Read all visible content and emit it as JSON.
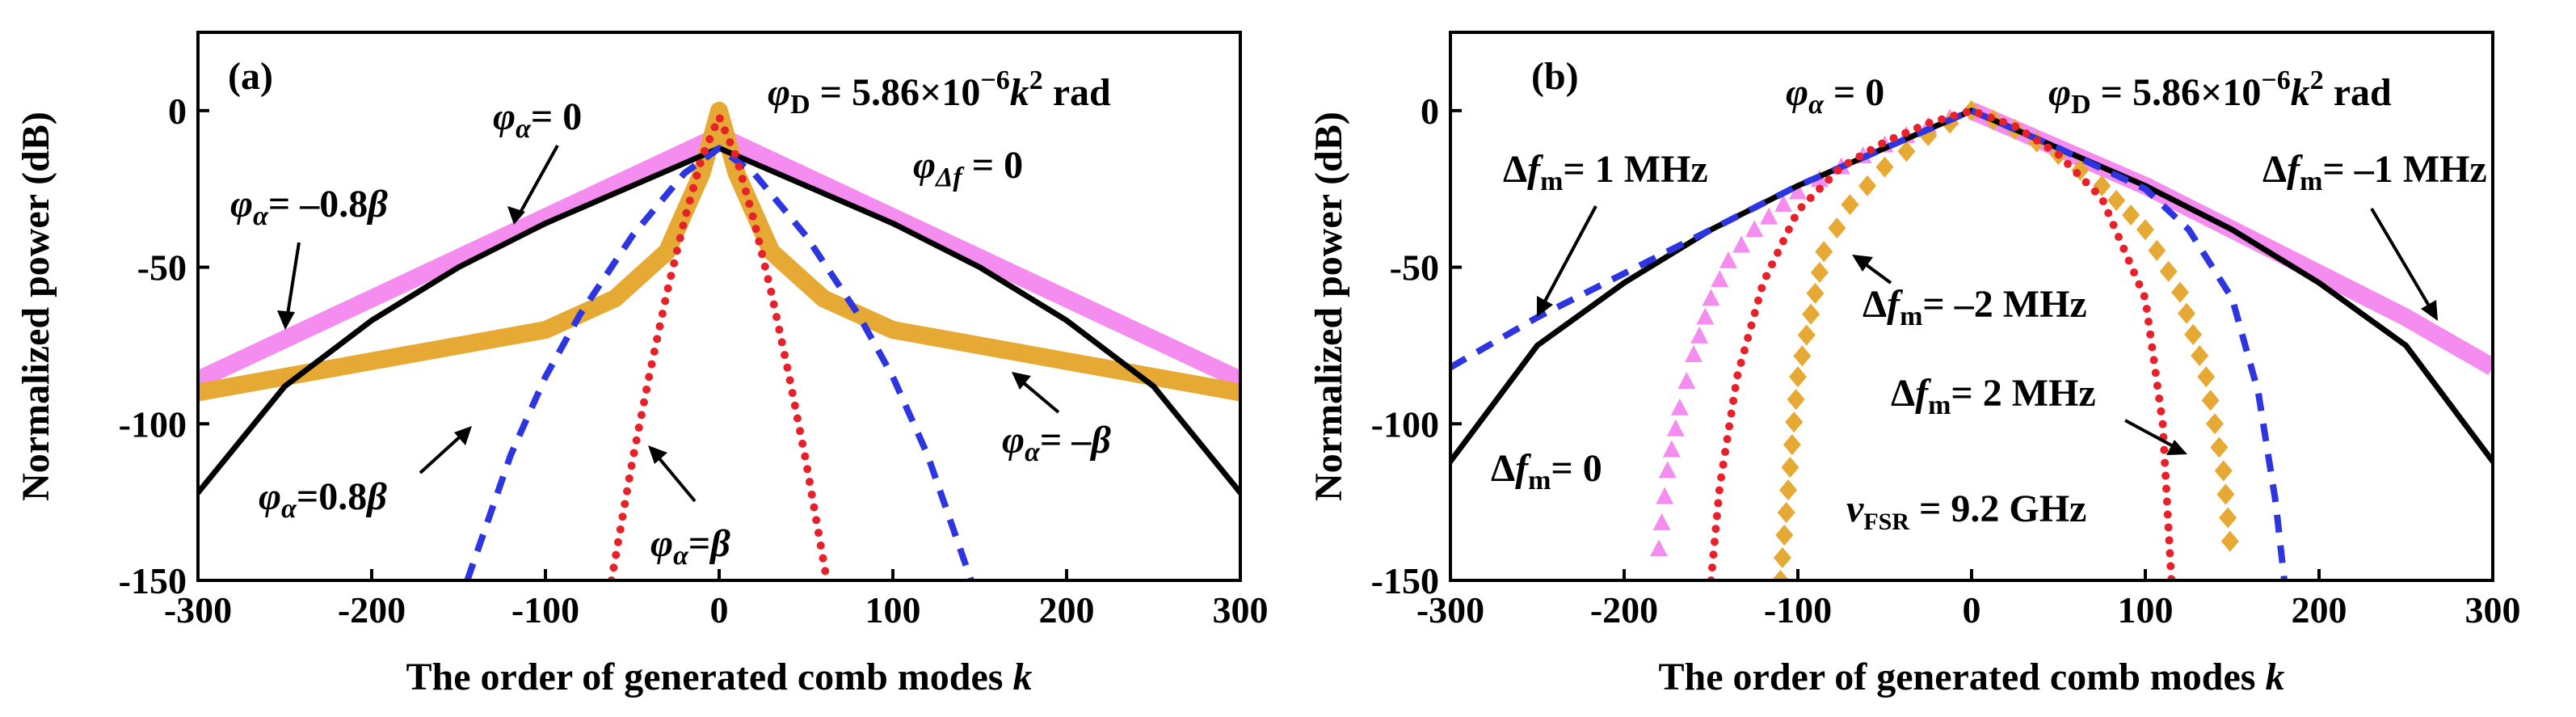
{
  "chart_data": [
    {
      "panel": "(a)",
      "type": "line",
      "xlabel": "The order of generated comb modes",
      "xlabel_var": "k",
      "ylabel": "Normalized power (dB)",
      "xlim": [
        -300,
        300
      ],
      "ylim": [
        -150,
        25
      ],
      "xticks": [
        -300,
        -200,
        -100,
        0,
        100,
        200,
        300
      ],
      "yticks": [
        0,
        -50,
        -100,
        -150
      ],
      "series": [
        {
          "name": "φα = 0",
          "style": "solid",
          "color": "#000000",
          "x": [
            -300,
            -250,
            -200,
            -150,
            -100,
            -50,
            0,
            50,
            100,
            150,
            200,
            250,
            300
          ],
          "y": [
            -122,
            -88,
            -67,
            -50,
            -36,
            -24,
            -12,
            -24,
            -36,
            -50,
            -67,
            -88,
            -122
          ]
        },
        {
          "name": "φα = −0.8β",
          "style": "thick",
          "color": "#f58cf0",
          "x": [
            -300,
            -200,
            -100,
            0,
            100,
            200,
            300
          ],
          "y": [
            -86,
            -60,
            -34,
            -8,
            -34,
            -60,
            -86
          ]
        },
        {
          "name": "φα = −β",
          "style": "thick",
          "color": "#e6a933",
          "x": [
            -300,
            -200,
            -100,
            -60,
            -30,
            -10,
            0,
            10,
            30,
            60,
            100,
            200,
            300
          ],
          "y": [
            -90,
            -80,
            -70,
            -60,
            -45,
            -20,
            0,
            -20,
            -45,
            -60,
            -70,
            -80,
            -90
          ]
        },
        {
          "name": "φα = 0.8β",
          "style": "dashed",
          "color": "#2c35e0",
          "x": [
            -145,
            -120,
            -100,
            -80,
            -50,
            -20,
            0,
            20,
            50,
            80,
            100,
            120,
            145
          ],
          "y": [
            -150,
            -110,
            -85,
            -65,
            -40,
            -20,
            -12,
            -20,
            -40,
            -65,
            -85,
            -110,
            -150
          ]
        },
        {
          "name": "φα = β",
          "style": "dotted",
          "color": "#e8202a",
          "x": [
            -62,
            -50,
            -40,
            -30,
            -20,
            -10,
            0,
            10,
            20,
            30,
            40,
            50,
            62
          ],
          "y": [
            -150,
            -112,
            -84,
            -58,
            -35,
            -15,
            -2,
            -15,
            -35,
            -58,
            -84,
            -112,
            -150
          ]
        }
      ],
      "annotations": [
        {
          "id": "a_phi0",
          "text": "φα = 0"
        },
        {
          "id": "a_m08b",
          "text": "φα = −0.8β"
        },
        {
          "id": "a_mb",
          "text": "φα = −β"
        },
        {
          "id": "a_08b",
          "text": "φα =0.8β"
        },
        {
          "id": "a_b",
          "text": "φα =β"
        },
        {
          "id": "a_phiD",
          "text": "φD = 5.86×10−6k2 rad"
        },
        {
          "id": "a_phidf",
          "text": "φΔf = 0"
        }
      ]
    },
    {
      "panel": "(b)",
      "type": "line",
      "xlabel": "The order of generated comb modes",
      "xlabel_var": "k",
      "ylabel": "Normalized power (dB)",
      "xlim": [
        -300,
        300
      ],
      "ylim": [
        -150,
        25
      ],
      "xticks": [
        -300,
        -200,
        -100,
        0,
        100,
        200,
        300
      ],
      "yticks": [
        0,
        -50,
        -100,
        -150
      ],
      "series": [
        {
          "name": "Δfm = 0",
          "style": "solid",
          "color": "#000000",
          "x": [
            -300,
            -250,
            -200,
            -150,
            -100,
            -50,
            0,
            50,
            100,
            150,
            200,
            250,
            300
          ],
          "y": [
            -112,
            -75,
            -55,
            -38,
            -24,
            -12,
            0,
            -12,
            -24,
            -38,
            -55,
            -75,
            -112
          ]
        },
        {
          "name": "Δfm = −1 MHz",
          "style": "thick",
          "color": "#f58cf0",
          "x": [
            0,
            50,
            100,
            150,
            200,
            250,
            300
          ],
          "y": [
            0,
            -12,
            -24,
            -38,
            -52,
            -66,
            -82
          ]
        },
        {
          "name": "Δfm = 1 MHz",
          "style": "dashed",
          "color": "#2c35e0",
          "x": [
            -300,
            -250,
            -200,
            -150,
            -100,
            -50,
            0
          ],
          "y": [
            -82,
            -66,
            -52,
            -38,
            -24,
            -12,
            0
          ]
        },
        {
          "name": "Δfm = 1 MHz (right branch)",
          "style": "dashed",
          "color": "#2c35e0",
          "x": [
            0,
            50,
            100,
            125,
            150,
            165,
            175,
            180
          ],
          "y": [
            0,
            -12,
            -25,
            -38,
            -60,
            -90,
            -125,
            -150
          ]
        },
        {
          "name": "Δfm = −2 MHz",
          "style": "triangles",
          "color": "#f58cf0",
          "x": [
            -180,
            -175,
            -168,
            -160,
            -150,
            -140,
            -125,
            -100,
            -75,
            -50,
            -25,
            0
          ],
          "y": [
            -140,
            -115,
            -95,
            -78,
            -60,
            -48,
            -38,
            -26,
            -18,
            -11,
            -5,
            0
          ]
        },
        {
          "name": "Δfm = 2 MHz",
          "style": "diamonds",
          "color": "#e6a933",
          "x": [
            -110,
            -100,
            -85,
            -70,
            -50,
            -25,
            0,
            25,
            50,
            75,
            100,
            120,
            135,
            145,
            150
          ],
          "y": [
            -150,
            -85,
            -45,
            -30,
            -18,
            -8,
            0,
            -6,
            -14,
            -24,
            -38,
            -58,
            -85,
            -115,
            -145
          ]
        },
        {
          "name": "Δfm = 2 MHz (dotted)",
          "style": "dotted",
          "color": "#e8202a",
          "x": [
            -150,
            -145,
            -135,
            -120,
            -100,
            -75,
            -50,
            -25,
            0,
            25,
            50,
            75,
            100,
            110,
            115
          ],
          "y": [
            -150,
            -120,
            -85,
            -55,
            -32,
            -18,
            -10,
            -4,
            0,
            -5,
            -14,
            -28,
            -60,
            -100,
            -150
          ]
        }
      ],
      "annotations": [
        {
          "id": "b_phi0",
          "text": "φα = 0"
        },
        {
          "id": "b_phiD",
          "text": "φD = 5.86×10−6k2 rad"
        },
        {
          "id": "b_1mhz",
          "text": "Δfm= 1 MHz"
        },
        {
          "id": "b_m1mhz",
          "text": "Δfm= −1 MHz"
        },
        {
          "id": "b_m2mhz",
          "text": "Δfm= −2 MHz"
        },
        {
          "id": "b_2mhz",
          "text": "Δfm= 2 MHz"
        },
        {
          "id": "b_0",
          "text": "Δfm= 0"
        },
        {
          "id": "b_vfsr",
          "text": "vFSR = 9.2 GHz"
        }
      ]
    }
  ],
  "labels": {
    "a": {
      "panel": "(a)",
      "phi_sym": "φ",
      "alpha_sub": "α",
      "eq": "= ",
      "zero": "0",
      "minus08b_num": "= –0.8",
      "beta": "β",
      "minusb_num": "= –",
      "eq08": "=0.8",
      "eqb": "=",
      "D_sub": "D",
      "phiD_val": " = 5.86×10",
      "exp": "−6",
      "k": "k",
      "sq": "2",
      "rad": " rad",
      "df_sub": "Δf",
      "df_eq": " = 0"
    },
    "b": {
      "panel": "(b)",
      "phi_sym": "φ",
      "alpha_sub": "α",
      "eq0": " = 0",
      "D_sub": "D",
      "phiD_val": " = 5.86×10",
      "exp": "−6",
      "k": "k",
      "sq": "2",
      "rad": " rad",
      "Delta": "Δ",
      "f": "f",
      "m": "m",
      "v1": "= 1 MHz",
      "vm1": "= –1 MHz",
      "vm2": "= –2 MHz",
      "v2": "= 2 MHz",
      "v0": "= 0",
      "nu": "v",
      "fsr": "FSR",
      "fsr_val": " = 9.2 GHz"
    },
    "ylabel": "Normalized power (dB)",
    "xlabel": "The order of generated comb modes ",
    "xlabel_var": "k"
  }
}
